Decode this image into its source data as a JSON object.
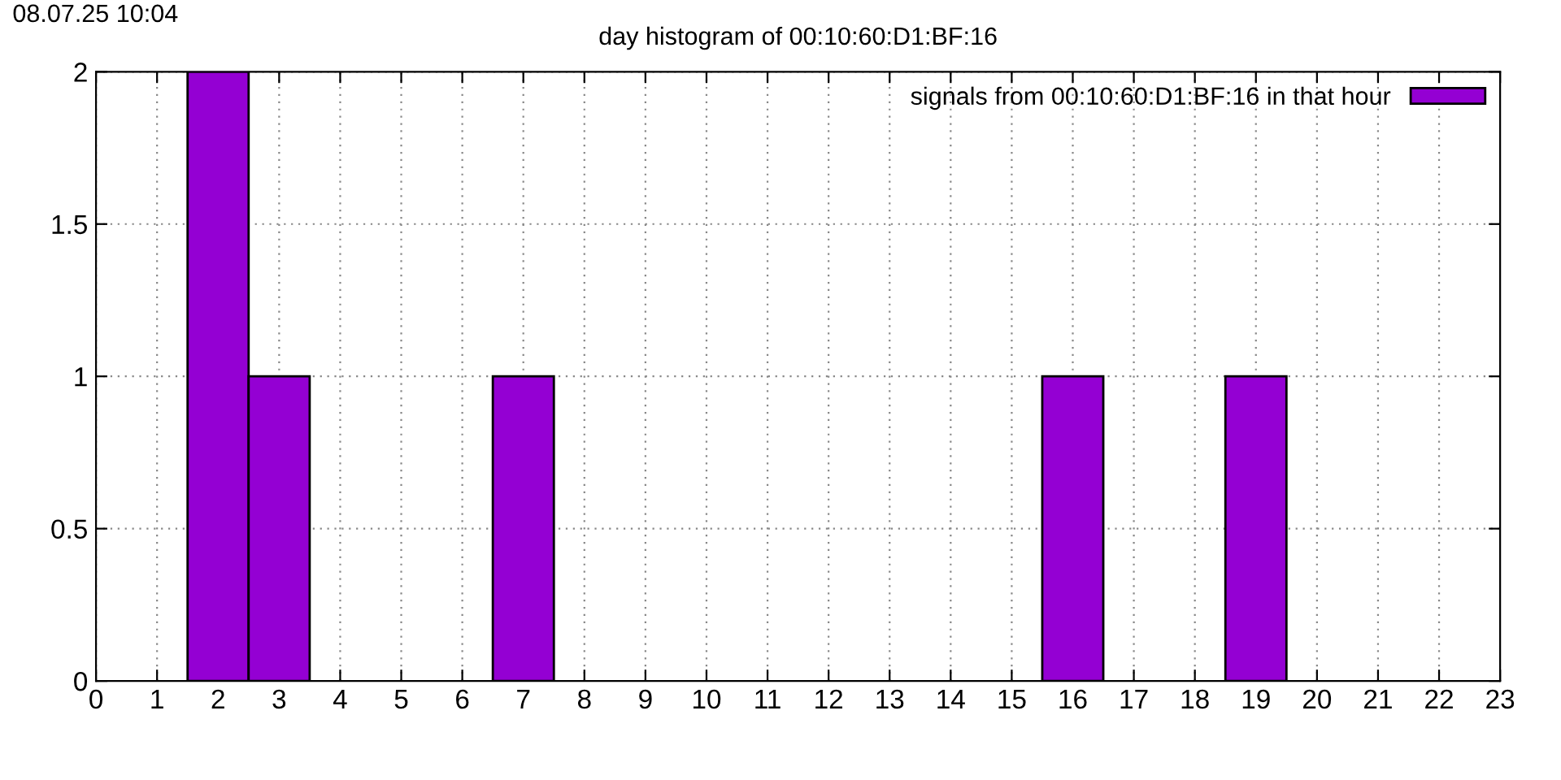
{
  "chart_data": {
    "type": "histogram",
    "title": "day histogram of 00:10:60:D1:BF:16",
    "annotations": [
      "08.07.25 10:04"
    ],
    "bins": [
      0.5,
      1.5,
      2.5,
      3.5,
      4.5,
      5.5,
      6.5,
      7.5,
      8.5,
      9.5,
      10.5,
      11.5,
      12.5,
      13.5,
      14.5,
      15.5,
      16.5,
      17.5,
      18.5,
      19.5,
      20.5,
      21.5,
      22.5
    ],
    "series": [
      {
        "name": "signals from 00:10:60:D1:BF:16 in that hour",
        "color": "#9400d3",
        "values": [
          0,
          2,
          1,
          0,
          0,
          0,
          1,
          0,
          0,
          0,
          0,
          0,
          0,
          0,
          0,
          1,
          0,
          0,
          1,
          0,
          0,
          0
        ]
      }
    ],
    "xlim": [
      0,
      23
    ],
    "xticks": [
      0,
      1,
      2,
      3,
      4,
      5,
      6,
      7,
      8,
      9,
      10,
      11,
      12,
      13,
      14,
      15,
      16,
      17,
      18,
      19,
      20,
      21,
      22,
      23
    ],
    "ylim": [
      0,
      2
    ],
    "yticks": [
      0,
      0.5,
      1,
      1.5,
      2
    ],
    "grid": true,
    "legend": "top right"
  }
}
